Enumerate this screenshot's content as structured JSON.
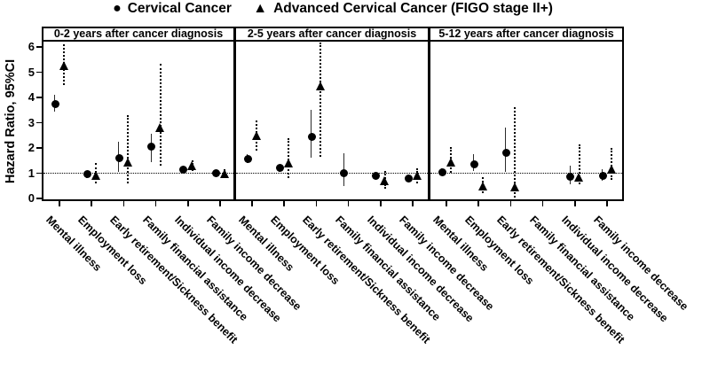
{
  "legend": {
    "items": [
      {
        "marker": "circle-icon",
        "glyph": "●",
        "label": "Cervical Cancer"
      },
      {
        "marker": "triangle-icon",
        "glyph": "▲",
        "label": "Advanced Cervical Cancer (FIGO stage II+)"
      }
    ]
  },
  "yaxis": {
    "label": "Hazard Ratio, 95%CI",
    "ticks": [
      0,
      1,
      2,
      3,
      4,
      5,
      6
    ],
    "range": [
      0,
      6.3
    ]
  },
  "categories": [
    "Mental illness",
    "Employment loss",
    "Early retirement/Sickness benefit",
    "Family financial assistance",
    "Individual income decrease",
    "Family income decrease"
  ],
  "colors": {
    "foreground": "#000000",
    "background": "#ffffff"
  },
  "chart_data": {
    "type": "scatter",
    "subtype": "forest-plot-hazard-ratios",
    "reference_line_y": 1,
    "grid": false,
    "legend_position": "top-center",
    "categories": [
      "Mental illness",
      "Employment loss",
      "Early retirement/Sickness benefit",
      "Family financial assistance",
      "Individual income decrease",
      "Family income decrease"
    ],
    "panels": [
      {
        "title": "0-2 years after cancer diagnosis",
        "series": [
          {
            "name": "Cervical Cancer",
            "marker": "circle",
            "ci_style": "solid",
            "points": [
              {
                "hr": 3.75,
                "lo": 3.45,
                "hi": 4.1
              },
              {
                "hr": 0.95,
                "lo": 0.8,
                "hi": 1.1
              },
              {
                "hr": 1.6,
                "lo": 1.05,
                "hi": 2.25
              },
              {
                "hr": 2.05,
                "lo": 1.45,
                "hi": 2.55
              },
              {
                "hr": 1.15,
                "lo": 1.0,
                "hi": 1.3
              },
              {
                "hr": 1.0,
                "lo": 0.9,
                "hi": 1.1
              }
            ]
          },
          {
            "name": "Advanced Cervical Cancer (FIGO stage II+)",
            "marker": "triangle",
            "ci_style": "dotted",
            "points": [
              {
                "hr": 5.25,
                "lo": 4.5,
                "hi": 6.1
              },
              {
                "hr": 0.9,
                "lo": 0.6,
                "hi": 1.4
              },
              {
                "hr": 1.45,
                "lo": 0.6,
                "hi": 3.3
              },
              {
                "hr": 2.8,
                "lo": 1.3,
                "hi": 5.35
              },
              {
                "hr": 1.3,
                "lo": 1.1,
                "hi": 1.5
              },
              {
                "hr": 0.97,
                "lo": 0.85,
                "hi": 1.15
              }
            ]
          }
        ]
      },
      {
        "title": "2-5 years after cancer diagnosis",
        "series": [
          {
            "name": "Cervical Cancer",
            "marker": "circle",
            "ci_style": "solid",
            "points": [
              {
                "hr": 1.55,
                "lo": 1.4,
                "hi": 1.75
              },
              {
                "hr": 1.2,
                "lo": 1.05,
                "hi": 1.35
              },
              {
                "hr": 2.45,
                "lo": 1.6,
                "hi": 3.5
              },
              {
                "hr": 1.0,
                "lo": 0.5,
                "hi": 1.8
              },
              {
                "hr": 0.9,
                "lo": 0.75,
                "hi": 1.05
              },
              {
                "hr": 0.8,
                "lo": 0.65,
                "hi": 0.95
              }
            ]
          },
          {
            "name": "Advanced Cervical Cancer (FIGO stage II+)",
            "marker": "triangle",
            "ci_style": "dotted",
            "points": [
              {
                "hr": 2.5,
                "lo": 1.9,
                "hi": 3.1
              },
              {
                "hr": 1.4,
                "lo": 0.8,
                "hi": 2.4
              },
              {
                "hr": 4.45,
                "lo": 1.65,
                "hi": 6.2
              },
              null,
              {
                "hr": 0.7,
                "lo": 0.4,
                "hi": 1.1
              },
              {
                "hr": 0.9,
                "lo": 0.6,
                "hi": 1.2
              }
            ]
          }
        ]
      },
      {
        "title": "5-12 years after cancer diagnosis",
        "series": [
          {
            "name": "Cervical Cancer",
            "marker": "circle",
            "ci_style": "solid",
            "points": [
              {
                "hr": 1.05,
                "lo": 0.9,
                "hi": 1.2
              },
              {
                "hr": 1.35,
                "lo": 1.1,
                "hi": 1.75
              },
              {
                "hr": 1.8,
                "lo": 1.05,
                "hi": 2.8
              },
              null,
              {
                "hr": 0.85,
                "lo": 0.55,
                "hi": 1.3
              },
              {
                "hr": 0.9,
                "lo": 0.7,
                "hi": 1.15
              }
            ]
          },
          {
            "name": "Advanced Cervical Cancer (FIGO stage II+)",
            "marker": "triangle",
            "ci_style": "dotted",
            "points": [
              {
                "hr": 1.45,
                "lo": 1.0,
                "hi": 2.05
              },
              {
                "hr": 0.5,
                "lo": 0.2,
                "hi": 0.85
              },
              {
                "hr": 0.45,
                "lo": 0.05,
                "hi": 3.6
              },
              null,
              {
                "hr": 0.85,
                "lo": 0.55,
                "hi": 2.15
              },
              {
                "hr": 1.15,
                "lo": 0.75,
                "hi": 2.0
              }
            ]
          }
        ]
      }
    ]
  }
}
